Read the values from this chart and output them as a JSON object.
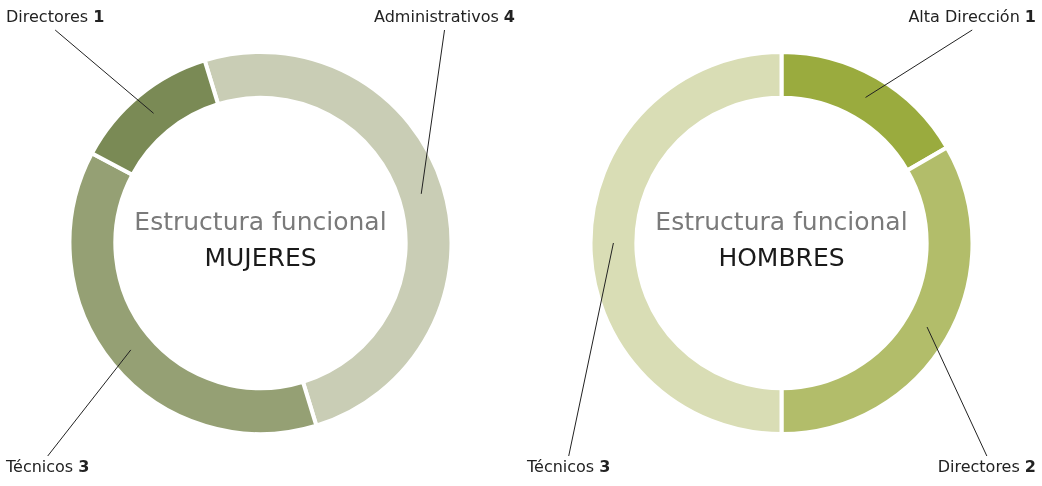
{
  "chart_data": [
    {
      "type": "donut",
      "title": "Estructura funcional",
      "subtitle": "MUJERES",
      "categories": [
        "Administrativos",
        "Técnicos",
        "Directores"
      ],
      "values": [
        4,
        3,
        1
      ],
      "colors": [
        "#c9cdb5",
        "#95a074",
        "#7a8a55"
      ],
      "data_labels": true,
      "legend": false
    },
    {
      "type": "donut",
      "title": "Estructura funcional",
      "subtitle": "HOMBRES",
      "categories": [
        "Alta Dirección",
        "Directores",
        "Técnicos"
      ],
      "values": [
        1,
        2,
        3
      ],
      "colors": [
        "#9aab3e",
        "#b2bd6a",
        "#d9ddb5"
      ],
      "data_labels": true,
      "legend": false
    }
  ]
}
